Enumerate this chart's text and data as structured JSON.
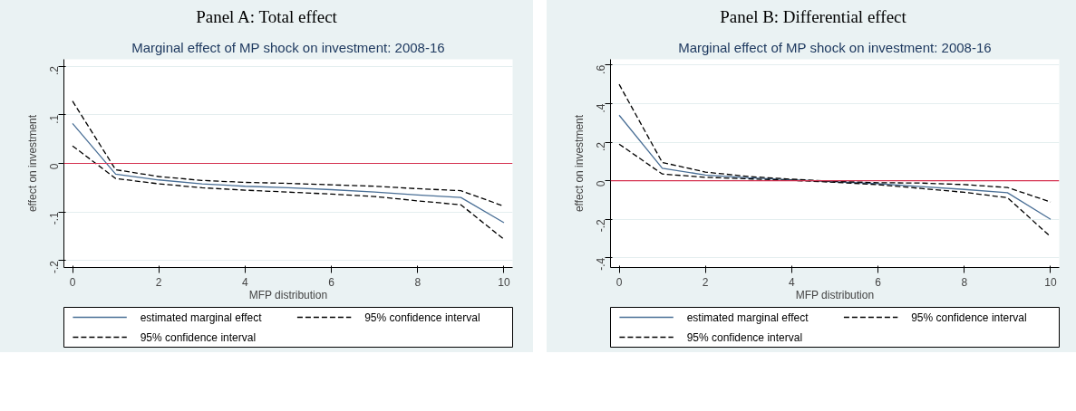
{
  "chart_data": [
    {
      "type": "line",
      "title": "Panel A: Total effect",
      "subtitle": "Marginal effect of MP shock on investment: 2008-16",
      "xlabel": "MFP distribution",
      "ylabel": "effect on investment",
      "x": [
        0,
        1,
        2,
        3,
        4,
        5,
        6,
        7,
        8,
        9,
        10
      ],
      "series": [
        {
          "name": "estimated marginal effect",
          "color": "#4a6f96",
          "line_style": "solid",
          "values": [
            0.082,
            -0.022,
            -0.034,
            -0.042,
            -0.047,
            -0.05,
            -0.054,
            -0.059,
            -0.065,
            -0.07,
            -0.122
          ]
        },
        {
          "name": "95% confidence interval",
          "color": "#000000",
          "line_style": "dashed",
          "values": [
            0.128,
            -0.013,
            -0.027,
            -0.035,
            -0.039,
            -0.041,
            -0.044,
            -0.047,
            -0.052,
            -0.056,
            -0.088
          ]
        },
        {
          "name": "95% confidence interval",
          "color": "#000000",
          "line_style": "dashed",
          "values": [
            0.036,
            -0.031,
            -0.042,
            -0.05,
            -0.055,
            -0.059,
            -0.063,
            -0.068,
            -0.077,
            -0.085,
            -0.156
          ]
        }
      ],
      "xlim": [
        -0.2,
        10.2
      ],
      "xticks": [
        0,
        2,
        4,
        6,
        8,
        10
      ],
      "ylim": [
        -0.214,
        0.214
      ],
      "yticks": [
        {
          "value": -0.2,
          "label": "-.2"
        },
        {
          "value": -0.1,
          "label": "-.1"
        },
        0,
        {
          "value": 0.1,
          "label": ".1"
        },
        {
          "value": 0.2,
          "label": ".2"
        }
      ],
      "ref_lines": [
        {
          "axis": "y",
          "value": 0,
          "color": "#d5304f"
        }
      ],
      "grid": "y",
      "legend": "bottom",
      "marker": "none"
    },
    {
      "type": "line",
      "title": "Panel B: Differential effect",
      "subtitle": "Marginal effect of MP shock on investment: 2008-16",
      "xlabel": "MFP distribution",
      "ylabel": "effect on investment",
      "x": [
        0,
        1,
        2,
        3,
        4,
        5,
        6,
        7,
        8,
        9,
        10
      ],
      "series": [
        {
          "name": "estimated marginal effect",
          "color": "#4a6f96",
          "line_style": "solid",
          "values": [
            0.34,
            0.065,
            0.03,
            0.015,
            0.005,
            -0.005,
            -0.015,
            -0.03,
            -0.045,
            -0.062,
            -0.2
          ]
        },
        {
          "name": "95% confidence interval",
          "color": "#000000",
          "line_style": "dashed",
          "values": [
            0.5,
            0.095,
            0.045,
            0.022,
            0.008,
            -0.003,
            -0.01,
            -0.012,
            -0.02,
            -0.035,
            -0.11
          ]
        },
        {
          "name": "95% confidence interval",
          "color": "#000000",
          "line_style": "dashed",
          "values": [
            0.19,
            0.035,
            0.018,
            0.01,
            0.002,
            -0.008,
            -0.02,
            -0.04,
            -0.06,
            -0.088,
            -0.29
          ]
        }
      ],
      "xlim": [
        -0.2,
        10.2
      ],
      "xticks": [
        0,
        2,
        4,
        6,
        8,
        10
      ],
      "ylim": [
        -0.45,
        0.63
      ],
      "yticks": [
        {
          "value": -0.4,
          "label": "-.4"
        },
        {
          "value": -0.2,
          "label": "-.2"
        },
        0,
        {
          "value": 0.2,
          "label": ".2"
        },
        {
          "value": 0.4,
          "label": ".4"
        },
        {
          "value": 0.6,
          "label": ".6"
        }
      ],
      "ref_lines": [
        {
          "axis": "y",
          "value": 0,
          "color": "#d5304f"
        }
      ],
      "grid": "y",
      "legend": "bottom",
      "marker": "none"
    }
  ]
}
